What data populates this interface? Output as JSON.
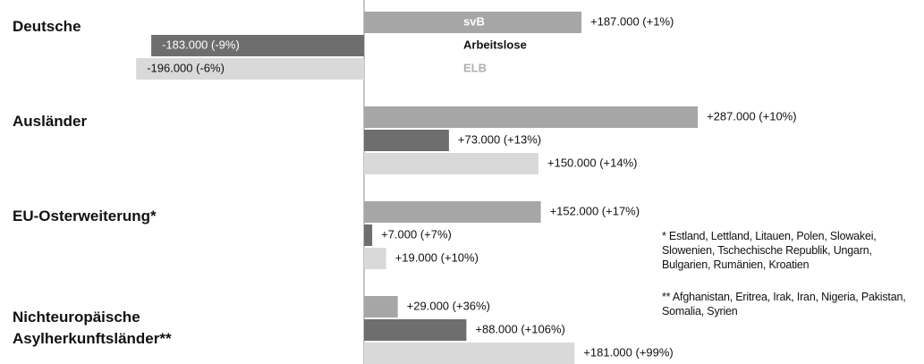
{
  "chart_data": {
    "type": "bar",
    "orientation": "horizontal",
    "categories": [
      "Deutsche",
      "Ausländer",
      "EU-Osterweiterung*",
      "Nichteuropäische Asylherkunftsländer**"
    ],
    "series": [
      {
        "name": "svB",
        "color": "#a6a6a6",
        "values": [
          187000,
          287000,
          152000,
          29000
        ],
        "value_labels": [
          "+187.000 (+1%)",
          "+287.000 (+10%)",
          "+152.000 (+17%)",
          "+29.000 (+36%)"
        ]
      },
      {
        "name": "Arbeitslose",
        "color": "#6e6e6e",
        "values": [
          -183000,
          73000,
          7000,
          88000
        ],
        "value_labels": [
          "-183.000 (-9%)",
          "+73.000 (+13%)",
          "+7.000 (+7%)",
          "+88.000 (+106%)"
        ]
      },
      {
        "name": "ELB",
        "color": "#d9d9d9",
        "values": [
          -196000,
          150000,
          19000,
          181000
        ],
        "value_labels": [
          "-196.000 (-6%)",
          "+150.000 (+14%)",
          "+19.000 (+10%)",
          "+181.000 (+99%)"
        ]
      }
    ],
    "annotations": [
      "* Estland, Lettland, Litauen, Polen, Slowakei, Slowenien, Tschechische Republik, Ungarn, Bulgarien, Rumänien, Kroatien",
      "** Afghanistan, Eritrea, Irak, Iran, Nigeria, Pakistan, Somalia, Syrien"
    ]
  }
}
